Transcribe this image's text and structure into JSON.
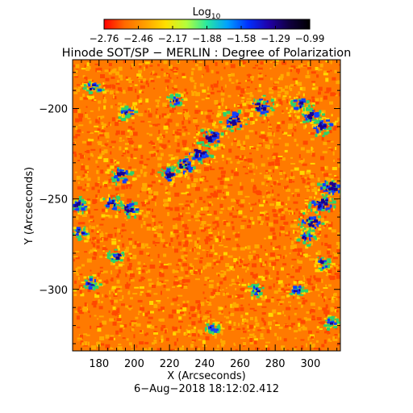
{
  "colorbar": {
    "title": "Log",
    "title_subscript": "10",
    "tick_labels": [
      "−2.76",
      "−2.46",
      "−2.17",
      "−1.88",
      "−1.58",
      "−1.29",
      "−0.99"
    ],
    "range": [
      -2.76,
      -0.99
    ],
    "colormap": [
      "#ff0000",
      "#ff6a00",
      "#ffa000",
      "#ffe000",
      "#b4ff3c",
      "#28e8a0",
      "#00a0ff",
      "#0030ff",
      "#2000a8",
      "#100040",
      "#000000"
    ]
  },
  "title": "Hinode SOT/SP − MERLIN : Degree of Polarization",
  "axes": {
    "xlabel": "X (Arcseconds)",
    "ylabel": "Y (Arcseconds)",
    "xlim": [
      165,
      317
    ],
    "ylim": [
      -334,
      -173
    ],
    "x_ticks": [
      {
        "value": 180,
        "label": "180"
      },
      {
        "value": 200,
        "label": "200"
      },
      {
        "value": 220,
        "label": "220"
      },
      {
        "value": 240,
        "label": "240"
      },
      {
        "value": 260,
        "label": "260"
      },
      {
        "value": 280,
        "label": "280"
      },
      {
        "value": 300,
        "label": "300"
      }
    ],
    "y_ticks": [
      {
        "value": -200,
        "label": "−200"
      },
      {
        "value": -250,
        "label": "−250"
      },
      {
        "value": -300,
        "label": "−300"
      }
    ]
  },
  "timestamp": "6−Aug−2018 18:12:02.412",
  "image_colors": {
    "background": "#ff7a00",
    "mottle_dark": "#ff4800",
    "mottle_light": "#ffaa00",
    "speck_yellow": "#ffd800",
    "network_green": "#2cd26c",
    "network_blue": "#1040ff",
    "network_core": "#1a0090"
  },
  "network_regions": [
    {
      "x": 256,
      "y": -206,
      "strength": 1.0
    },
    {
      "x": 271,
      "y": -198,
      "strength": 0.9
    },
    {
      "x": 243,
      "y": -215,
      "strength": 0.9
    },
    {
      "x": 236,
      "y": -224,
      "strength": 0.85
    },
    {
      "x": 228,
      "y": -231,
      "strength": 0.8
    },
    {
      "x": 219,
      "y": -236,
      "strength": 0.6
    },
    {
      "x": 306,
      "y": -209,
      "strength": 0.8
    },
    {
      "x": 300,
      "y": -203,
      "strength": 0.7
    },
    {
      "x": 293,
      "y": -197,
      "strength": 0.55
    },
    {
      "x": 311,
      "y": -243,
      "strength": 0.95
    },
    {
      "x": 306,
      "y": -252,
      "strength": 0.95
    },
    {
      "x": 300,
      "y": -262,
      "strength": 0.8
    },
    {
      "x": 297,
      "y": -271,
      "strength": 0.5
    },
    {
      "x": 192,
      "y": -236,
      "strength": 0.75
    },
    {
      "x": 196,
      "y": -255,
      "strength": 0.7
    },
    {
      "x": 187,
      "y": -252,
      "strength": 0.55
    },
    {
      "x": 168,
      "y": -253,
      "strength": 0.55
    },
    {
      "x": 168,
      "y": -268,
      "strength": 0.45
    },
    {
      "x": 176,
      "y": -188,
      "strength": 0.45
    },
    {
      "x": 195,
      "y": -202,
      "strength": 0.4
    },
    {
      "x": 189,
      "y": -281,
      "strength": 0.35
    },
    {
      "x": 222,
      "y": -195,
      "strength": 0.35
    },
    {
      "x": 175,
      "y": -296,
      "strength": 0.4
    },
    {
      "x": 292,
      "y": -300,
      "strength": 0.4
    },
    {
      "x": 268,
      "y": -300,
      "strength": 0.35
    },
    {
      "x": 306,
      "y": -285,
      "strength": 0.35
    },
    {
      "x": 244,
      "y": -321,
      "strength": 0.3
    },
    {
      "x": 311,
      "y": -318,
      "strength": 0.3
    }
  ]
}
